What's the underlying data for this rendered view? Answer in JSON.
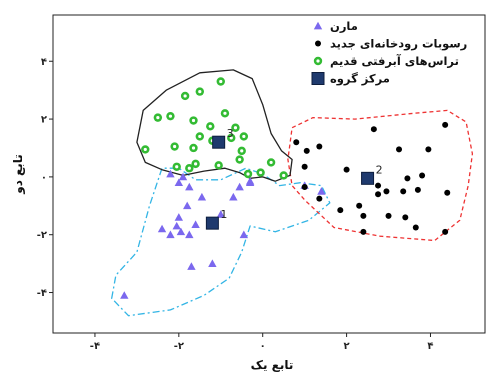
{
  "chart_data": {
    "type": "scatter",
    "xlabel": "تابع یک",
    "ylabel": "تابع دو",
    "xlim": [
      -5,
      5.3
    ],
    "ylim": [
      -5.4,
      5.6
    ],
    "x_ticks": [
      -4,
      -2,
      0,
      2,
      4
    ],
    "x_tick_labels": [
      "-۴",
      "-۲",
      "۰",
      "۲",
      "۴"
    ],
    "y_ticks": [
      -4,
      -2,
      0,
      2,
      4
    ],
    "y_tick_labels": [
      "-۴",
      "-۲",
      "۰",
      "۲",
      "۴"
    ],
    "legend_position": "top-right",
    "grid": false,
    "series": [
      {
        "name": "مارن",
        "marker": "triangle",
        "color": "#7b68ee",
        "points": [
          [
            -3.3,
            -4.1
          ],
          [
            -2.4,
            -1.8
          ],
          [
            -2.05,
            -1.7
          ],
          [
            -1.95,
            -1.9
          ],
          [
            -1.75,
            -2.0
          ],
          [
            -2.2,
            -2.0
          ],
          [
            -1.6,
            -1.65
          ],
          [
            -2.0,
            -1.4
          ],
          [
            -1.8,
            -1.0
          ],
          [
            -1.45,
            -0.7
          ],
          [
            -1.75,
            -0.35
          ],
          [
            -2.0,
            -0.2
          ],
          [
            -2.2,
            0.1
          ],
          [
            -1.9,
            0.0
          ],
          [
            -1.2,
            -3.0
          ],
          [
            -1.7,
            -3.1
          ],
          [
            -1.0,
            -1.3
          ],
          [
            -0.45,
            -2.0
          ],
          [
            -0.7,
            -0.7
          ],
          [
            -0.55,
            -0.35
          ],
          [
            -0.3,
            -0.15
          ],
          [
            -0.3,
            -0.2
          ],
          [
            1.0,
            -0.3
          ],
          [
            1.4,
            -0.5
          ]
        ]
      },
      {
        "name": "رسوبات رودخانه‌ای جدید",
        "marker": "circle",
        "color": "#000000",
        "points": [
          [
            0.8,
            1.2
          ],
          [
            1.05,
            0.9
          ],
          [
            1.35,
            1.05
          ],
          [
            1.0,
            0.35
          ],
          [
            2.0,
            0.25
          ],
          [
            2.65,
            1.65
          ],
          [
            3.25,
            0.95
          ],
          [
            3.95,
            0.95
          ],
          [
            4.35,
            1.8
          ],
          [
            3.8,
            0.05
          ],
          [
            3.45,
            -0.05
          ],
          [
            2.75,
            -0.3
          ],
          [
            2.75,
            -0.6
          ],
          [
            2.95,
            -0.5
          ],
          [
            3.35,
            -0.5
          ],
          [
            3.7,
            -0.45
          ],
          [
            4.4,
            -0.55
          ],
          [
            1.35,
            -0.75
          ],
          [
            2.3,
            -1.0
          ],
          [
            1.85,
            -1.15
          ],
          [
            2.4,
            -1.35
          ],
          [
            3.0,
            -1.35
          ],
          [
            3.4,
            -1.4
          ],
          [
            3.65,
            -1.75
          ],
          [
            4.35,
            -1.9
          ],
          [
            2.4,
            -1.9
          ],
          [
            1.0,
            -0.35
          ]
        ]
      },
      {
        "name": "تراس‌های آبرفتی قدیم",
        "marker": "ring",
        "color": "#33bb33",
        "points": [
          [
            -1.85,
            2.8
          ],
          [
            -1.5,
            2.95
          ],
          [
            -1.0,
            3.3
          ],
          [
            -2.5,
            2.05
          ],
          [
            -2.2,
            2.1
          ],
          [
            -1.65,
            1.95
          ],
          [
            -1.25,
            1.75
          ],
          [
            -0.9,
            2.2
          ],
          [
            -0.65,
            1.7
          ],
          [
            -1.5,
            1.4
          ],
          [
            -1.2,
            1.25
          ],
          [
            -0.75,
            1.35
          ],
          [
            -0.45,
            1.4
          ],
          [
            -2.1,
            1.05
          ],
          [
            -1.65,
            1.0
          ],
          [
            -0.5,
            0.9
          ],
          [
            -2.8,
            0.95
          ],
          [
            -1.6,
            0.45
          ],
          [
            -1.05,
            0.4
          ],
          [
            -0.55,
            0.6
          ],
          [
            -0.35,
            0.1
          ],
          [
            -0.05,
            0.15
          ],
          [
            0.2,
            0.5
          ],
          [
            0.5,
            0.05
          ],
          [
            -2.05,
            0.35
          ],
          [
            -1.75,
            0.3
          ]
        ]
      },
      {
        "name": "مرکز گروه",
        "marker": "square",
        "color": "#1f3a6e",
        "points": [
          [
            -1.2,
            -1.6
          ],
          [
            2.5,
            -0.05
          ],
          [
            -1.05,
            1.2
          ]
        ],
        "labels": [
          "1",
          "2",
          "3"
        ]
      }
    ],
    "enclosures": [
      {
        "group": "مارن",
        "style": "dash-dot",
        "color": "#33b5e5",
        "path": [
          [
            -3.6,
            -4.2
          ],
          [
            -3.5,
            -3.4
          ],
          [
            -3.0,
            -2.6
          ],
          [
            -2.7,
            -1.0
          ],
          [
            -2.4,
            0.3
          ],
          [
            -2.0,
            0.3
          ],
          [
            -1.6,
            -0.1
          ],
          [
            -1.0,
            -0.1
          ],
          [
            -0.4,
            0.3
          ],
          [
            0.0,
            0.1
          ],
          [
            0.4,
            -0.3
          ],
          [
            0.9,
            -0.2
          ],
          [
            1.4,
            -0.3
          ],
          [
            1.6,
            -0.9
          ],
          [
            1.1,
            -1.5
          ],
          [
            0.3,
            -1.9
          ],
          [
            -0.3,
            -1.7
          ],
          [
            -0.5,
            -2.6
          ],
          [
            -0.8,
            -3.5
          ],
          [
            -1.4,
            -4.1
          ],
          [
            -2.2,
            -4.6
          ],
          [
            -3.2,
            -4.8
          ]
        ]
      },
      {
        "group": "رسوبات رودخانه‌ای جدید",
        "style": "dashed",
        "color": "#ee3333",
        "path": [
          [
            0.7,
            1.7
          ],
          [
            1.2,
            2.05
          ],
          [
            2.2,
            2.0
          ],
          [
            3.6,
            2.2
          ],
          [
            4.4,
            2.3
          ],
          [
            4.85,
            1.9
          ],
          [
            5.0,
            0.8
          ],
          [
            4.9,
            -0.3
          ],
          [
            4.7,
            -1.5
          ],
          [
            4.1,
            -2.2
          ],
          [
            2.8,
            -2.05
          ],
          [
            1.7,
            -1.75
          ],
          [
            1.0,
            -0.8
          ],
          [
            0.7,
            -0.3
          ],
          [
            0.6,
            0.6
          ]
        ]
      },
      {
        "group": "تراس‌های آبرفتی قدیم",
        "style": "solid",
        "color": "#222222",
        "path": [
          [
            -3.0,
            1.2
          ],
          [
            -2.85,
            2.3
          ],
          [
            -2.3,
            3.0
          ],
          [
            -1.5,
            3.6
          ],
          [
            -0.7,
            3.7
          ],
          [
            -0.25,
            3.4
          ],
          [
            0.0,
            2.5
          ],
          [
            0.2,
            1.5
          ],
          [
            0.45,
            0.9
          ],
          [
            0.7,
            0.6
          ],
          [
            0.65,
            0.05
          ],
          [
            0.3,
            -0.15
          ],
          [
            0.0,
            0.0
          ],
          [
            -0.3,
            -0.05
          ],
          [
            -0.55,
            0.15
          ],
          [
            -0.9,
            0.3
          ],
          [
            -1.4,
            0.2
          ],
          [
            -1.9,
            0.05
          ],
          [
            -2.4,
            0.25
          ],
          [
            -2.8,
            0.5
          ]
        ]
      }
    ]
  }
}
